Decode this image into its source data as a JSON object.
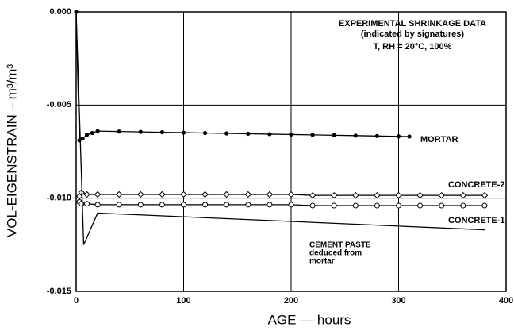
{
  "chart_data": {
    "type": "line",
    "xlabel": "AGE — hours",
    "ylabel": "VOL-EIGENSTRAIN – m³/m³",
    "annotations": [
      "EXPERIMENTAL SHRINKAGE DATA",
      "(indicated by signatures)",
      "T, RH = 20°C, 100%",
      "deduced from",
      "mortar"
    ],
    "xlim": [
      0,
      400
    ],
    "xticks": [
      0,
      100,
      200,
      300,
      400
    ],
    "ylim": [
      -0.015,
      0.0
    ],
    "yticks": [
      {
        "value": 0.0,
        "label": "0.000"
      },
      {
        "value": -0.005,
        "label": "-0.005"
      },
      {
        "value": -0.01,
        "label": "-0.010"
      },
      {
        "value": -0.015,
        "label": "-0.015"
      }
    ],
    "grid": true,
    "series": [
      {
        "name": "MORTAR",
        "color": "#000000",
        "marker": "dot",
        "x": [
          0,
          3,
          6,
          10,
          15,
          20,
          40,
          60,
          80,
          100,
          120,
          140,
          160,
          180,
          200,
          220,
          240,
          260,
          280,
          300,
          310
        ],
        "values": [
          0.0,
          -0.0069,
          -0.0068,
          -0.0066,
          -0.0065,
          -0.0064,
          -0.00642,
          -0.00644,
          -0.00646,
          -0.00648,
          -0.0065,
          -0.00652,
          -0.00654,
          -0.00656,
          -0.00658,
          -0.0066,
          -0.00662,
          -0.00664,
          -0.00666,
          -0.00668,
          -0.00669
        ]
      },
      {
        "name": "CONCRETE-2",
        "color": "#000000",
        "marker": "diamond",
        "x": [
          3,
          5,
          10,
          20,
          40,
          60,
          80,
          100,
          120,
          140,
          160,
          180,
          200,
          220,
          240,
          260,
          280,
          300,
          320,
          340,
          360,
          380
        ],
        "values": [
          -0.0099,
          -0.0097,
          -0.0098,
          -0.0098,
          -0.0098,
          -0.0098,
          -0.0098,
          -0.0098,
          -0.0098,
          -0.0098,
          -0.0098,
          -0.0098,
          -0.0098,
          -0.00985,
          -0.00985,
          -0.00985,
          -0.00985,
          -0.00985,
          -0.00985,
          -0.00985,
          -0.00985,
          -0.00985
        ]
      },
      {
        "name": "CONCRETE-1",
        "color": "#000000",
        "marker": "circle",
        "x": [
          3,
          5,
          10,
          20,
          40,
          60,
          80,
          100,
          120,
          140,
          160,
          180,
          200,
          220,
          240,
          260,
          280,
          300,
          320,
          340,
          360,
          380
        ],
        "values": [
          -0.0102,
          -0.0103,
          -0.0103,
          -0.01035,
          -0.01035,
          -0.01035,
          -0.01035,
          -0.01035,
          -0.01035,
          -0.01035,
          -0.01035,
          -0.01035,
          -0.01035,
          -0.0104,
          -0.0104,
          -0.0104,
          -0.0104,
          -0.0104,
          -0.0104,
          -0.0104,
          -0.0104,
          -0.0104
        ]
      },
      {
        "name": "CEMENT PASTE",
        "color": "#000000",
        "marker": "none",
        "x": [
          0,
          7,
          20,
          380
        ],
        "values": [
          0.0,
          -0.0125,
          -0.0108,
          -0.0117
        ]
      }
    ]
  }
}
